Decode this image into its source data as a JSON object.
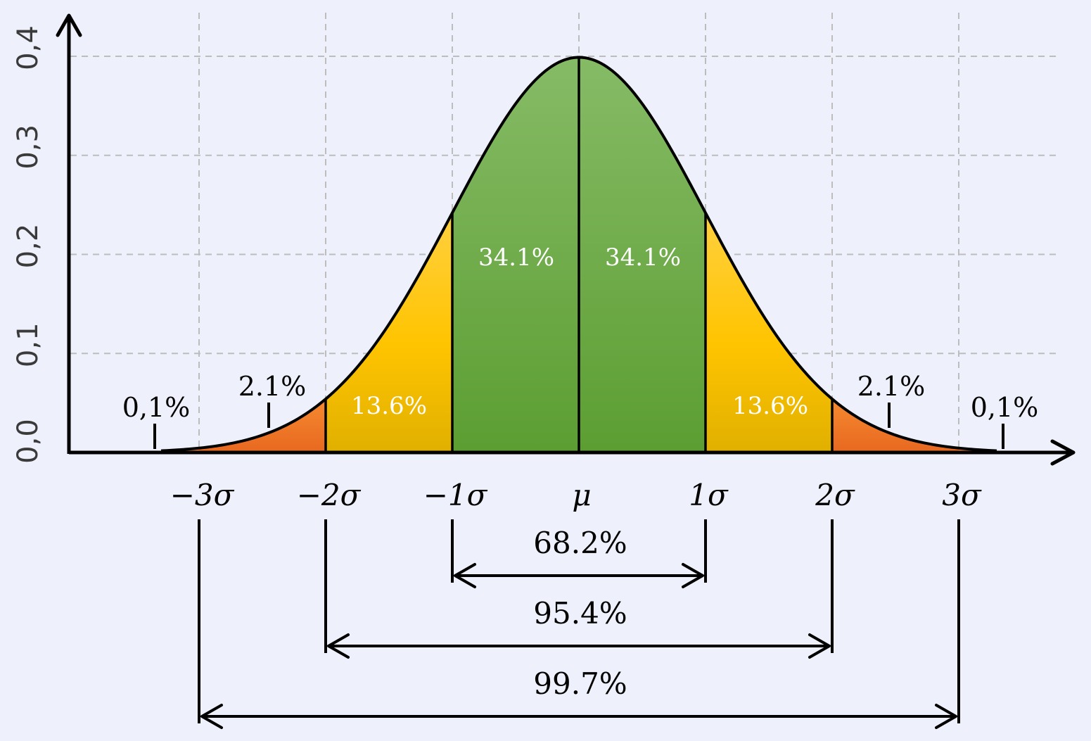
{
  "chart_data": {
    "type": "area",
    "mean": 0,
    "sd": 1,
    "x_ticks": [
      {
        "value": -3,
        "label": "−3σ"
      },
      {
        "value": -2,
        "label": "−2σ"
      },
      {
        "value": -1,
        "label": "−1σ"
      },
      {
        "value": 0,
        "label": "μ"
      },
      {
        "value": 1,
        "label": "1σ"
      },
      {
        "value": 2,
        "label": "2σ"
      },
      {
        "value": 3,
        "label": "3σ"
      }
    ],
    "y_ticks": [
      {
        "value": 0.0,
        "label": "0,0"
      },
      {
        "value": 0.1,
        "label": "0,1"
      },
      {
        "value": 0.2,
        "label": "0,2"
      },
      {
        "value": 0.3,
        "label": "0,3"
      },
      {
        "value": 0.4,
        "label": "0,4"
      }
    ],
    "xlim": [
      -3.3,
      3.3
    ],
    "ylim": [
      0,
      0.4
    ],
    "grid": true,
    "bands": [
      {
        "from": -3,
        "to": -2,
        "label": "2.1%",
        "color": "#EE6A20",
        "label_inside": false
      },
      {
        "from": -2,
        "to": -1,
        "label": "13.6%",
        "color": "#F5B800",
        "label_inside": true
      },
      {
        "from": -1,
        "to": 0,
        "label": "34.1%",
        "color": "#6DAD46",
        "label_inside": true
      },
      {
        "from": 0,
        "to": 1,
        "label": "34.1%",
        "color": "#6DAD46",
        "label_inside": true
      },
      {
        "from": 1,
        "to": 2,
        "label": "13.6%",
        "color": "#F5B800",
        "label_inside": true
      },
      {
        "from": 2,
        "to": 3,
        "label": "2.1%",
        "color": "#EE6A20",
        "label_inside": false
      }
    ],
    "tail_labels": [
      {
        "at": -3.35,
        "label": "0,1%"
      },
      {
        "at": 3.35,
        "label": "0,1%"
      }
    ],
    "ranges": [
      {
        "from": -1,
        "to": 1,
        "label": "68.2%"
      },
      {
        "from": -2,
        "to": 2,
        "label": "95.4%"
      },
      {
        "from": -3,
        "to": 3,
        "label": "99.7%"
      }
    ]
  }
}
